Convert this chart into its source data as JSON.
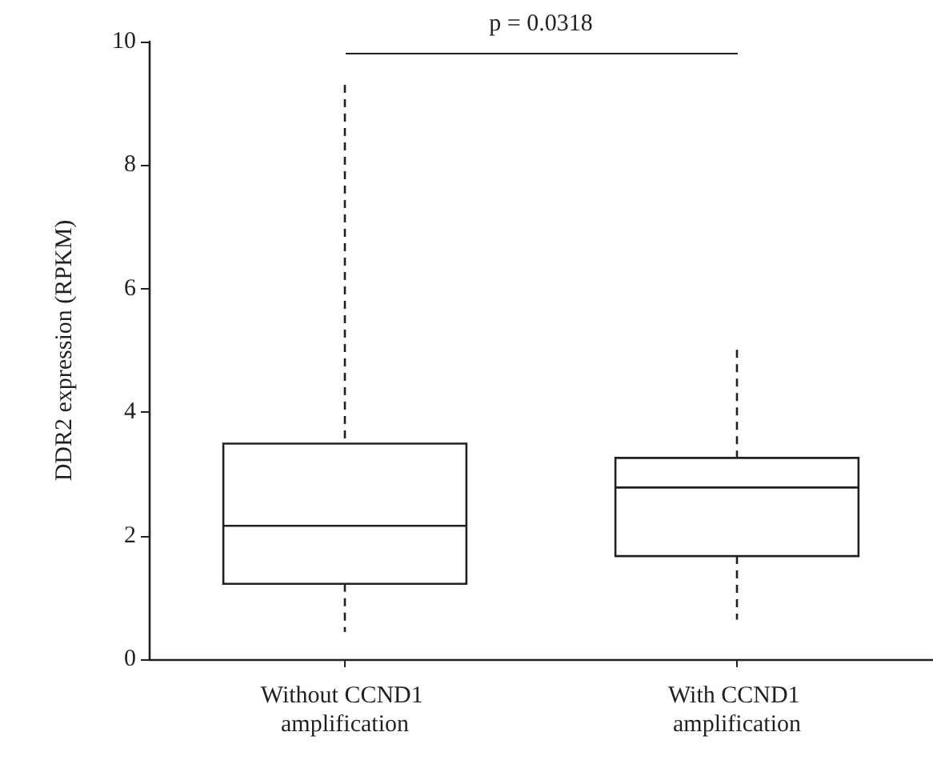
{
  "chart_data": {
    "type": "box",
    "categories": [
      "Without CCND1 amplification",
      "With CCND1 amplification"
    ],
    "boxes": [
      {
        "low": 0.44,
        "q1": 1.22,
        "median": 2.16,
        "q3": 3.49,
        "high": 9.3
      },
      {
        "low": 0.64,
        "q1": 1.67,
        "median": 2.78,
        "q3": 3.26,
        "high": 5.01
      }
    ],
    "ylabel": "DDR2 expression (RPKM)",
    "ylim": [
      0,
      10
    ],
    "yticks": [
      0,
      2,
      4,
      6,
      8,
      10
    ],
    "annotations": [
      "p = 0.0318"
    ],
    "color": "#231f20",
    "line_style": "dashed"
  }
}
